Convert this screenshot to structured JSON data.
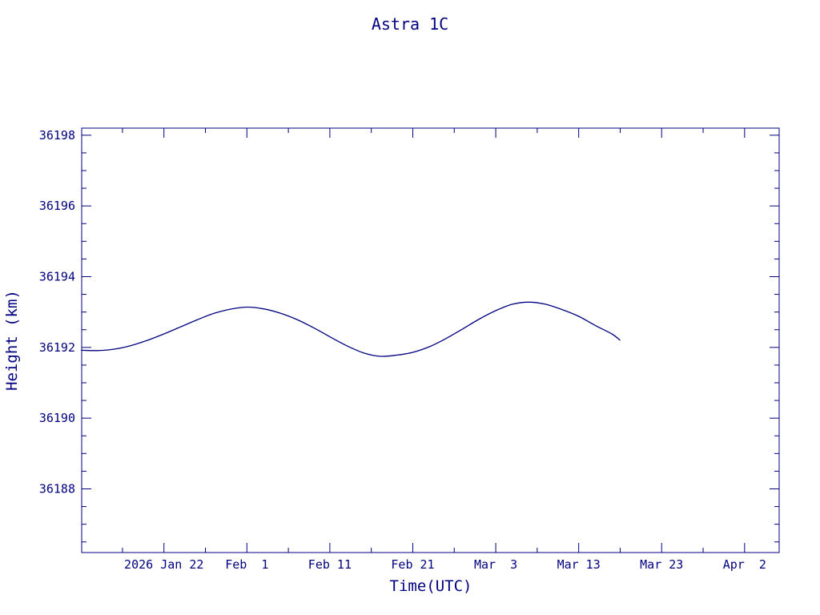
{
  "chart_data": {
    "type": "line",
    "title": "Astra 1C",
    "xlabel": "Time(UTC)",
    "ylabel": "Height (km)",
    "colors": {
      "line": "#000080",
      "text": "#000080",
      "background": "#ffffff"
    },
    "grid": false,
    "legend": "none",
    "xlim": [
      "2026-01-12T02:00",
      "2026-04-06T04:00"
    ],
    "ylim": [
      36186.2,
      36198.2
    ],
    "x_ticks": [
      {
        "date": "2026-01-22",
        "label": "2026 Jan 22"
      },
      {
        "date": "2026-02-01",
        "label": "Feb  1"
      },
      {
        "date": "2026-02-11",
        "label": "Feb 11"
      },
      {
        "date": "2026-02-21",
        "label": "Feb 21"
      },
      {
        "date": "2026-03-03",
        "label": "Mar  3"
      },
      {
        "date": "2026-03-13",
        "label": "Mar 13"
      },
      {
        "date": "2026-03-23",
        "label": "Mar 23"
      },
      {
        "date": "2026-04-02",
        "label": "Apr  2"
      }
    ],
    "y_ticks": [
      {
        "value": 36188,
        "label": "36188"
      },
      {
        "value": 36190,
        "label": "36190"
      },
      {
        "value": 36192,
        "label": "36192"
      },
      {
        "value": 36194,
        "label": "36194"
      },
      {
        "value": 36196,
        "label": "36196"
      },
      {
        "value": 36198,
        "label": "36198"
      }
    ],
    "series": [
      {
        "points": [
          [
            "2026-01-12",
            36191.92
          ],
          [
            "2026-01-14",
            36191.91
          ],
          [
            "2026-01-16",
            36191.95
          ],
          [
            "2026-01-18",
            36192.05
          ],
          [
            "2026-01-20",
            36192.2
          ],
          [
            "2026-01-22",
            36192.38
          ],
          [
            "2026-01-24",
            36192.58
          ],
          [
            "2026-01-26",
            36192.78
          ],
          [
            "2026-01-28",
            36192.96
          ],
          [
            "2026-01-30",
            36193.08
          ],
          [
            "2026-02-01",
            36193.14
          ],
          [
            "2026-02-03",
            36193.09
          ],
          [
            "2026-02-05",
            36192.97
          ],
          [
            "2026-02-07",
            36192.79
          ],
          [
            "2026-02-09",
            36192.56
          ],
          [
            "2026-02-11",
            36192.3
          ],
          [
            "2026-02-13",
            36192.05
          ],
          [
            "2026-02-15",
            36191.85
          ],
          [
            "2026-02-17",
            36191.75
          ],
          [
            "2026-02-19",
            36191.78
          ],
          [
            "2026-02-21",
            36191.86
          ],
          [
            "2026-02-23",
            36192.02
          ],
          [
            "2026-02-25",
            36192.25
          ],
          [
            "2026-02-27",
            36192.52
          ],
          [
            "2026-03-01",
            36192.8
          ],
          [
            "2026-03-03",
            36193.04
          ],
          [
            "2026-03-05",
            36193.22
          ],
          [
            "2026-03-07",
            36193.28
          ],
          [
            "2026-03-09",
            36193.22
          ],
          [
            "2026-03-11",
            36193.07
          ],
          [
            "2026-03-13",
            36192.88
          ],
          [
            "2026-03-15",
            36192.62
          ],
          [
            "2026-03-17",
            36192.38
          ],
          [
            "2026-03-18",
            36192.2
          ]
        ]
      }
    ]
  }
}
